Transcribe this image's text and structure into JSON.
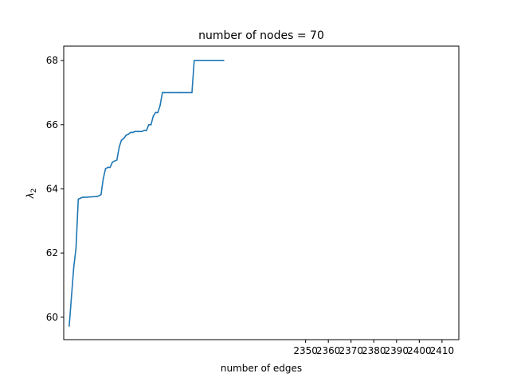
{
  "chart_data": {
    "type": "line",
    "title": "number of nodes = 70",
    "xlabel": "number of edges",
    "ylabel_symbol": "λ",
    "ylabel_subscript": "2",
    "xlim": [
      2243.6,
      2417.4
    ],
    "ylim": [
      59.3,
      68.45
    ],
    "xticks": [
      2350,
      2360,
      2370,
      2380,
      2390,
      2400,
      2410
    ],
    "yticks": [
      60,
      62,
      64,
      66,
      68
    ],
    "grid": false,
    "line_color": "#1f77b4",
    "series": [
      {
        "x": [
          2246,
          2248,
          2249,
          2250,
          2251,
          2252,
          2253,
          2254,
          2255,
          2256,
          2257,
          2258,
          2259,
          2260,
          2261,
          2262,
          2263,
          2264,
          2265,
          2266,
          2267,
          2268,
          2269,
          2270,
          2271,
          2272,
          2273,
          2274,
          2275,
          2276,
          2277,
          2278,
          2279,
          2280,
          2281,
          2282,
          2283,
          2284,
          2285,
          2286,
          2287,
          2288,
          2290,
          2295,
          2300,
          2301,
          2305,
          2310,
          2314
        ],
        "y": [
          59.72,
          61.55,
          62.15,
          63.68,
          63.71,
          63.74,
          63.74,
          63.74,
          63.75,
          63.75,
          63.76,
          63.76,
          63.78,
          63.82,
          64.32,
          64.63,
          64.67,
          64.67,
          64.83,
          64.87,
          64.9,
          65.3,
          65.52,
          65.57,
          65.67,
          65.7,
          65.76,
          65.76,
          65.79,
          65.79,
          65.79,
          65.79,
          65.82,
          65.82,
          66.0,
          66.0,
          66.27,
          66.38,
          66.38,
          66.6,
          67.0,
          67.0,
          67.0,
          67.0,
          67.0,
          68.0,
          68.0,
          68.0,
          68.0
        ]
      }
    ]
  }
}
